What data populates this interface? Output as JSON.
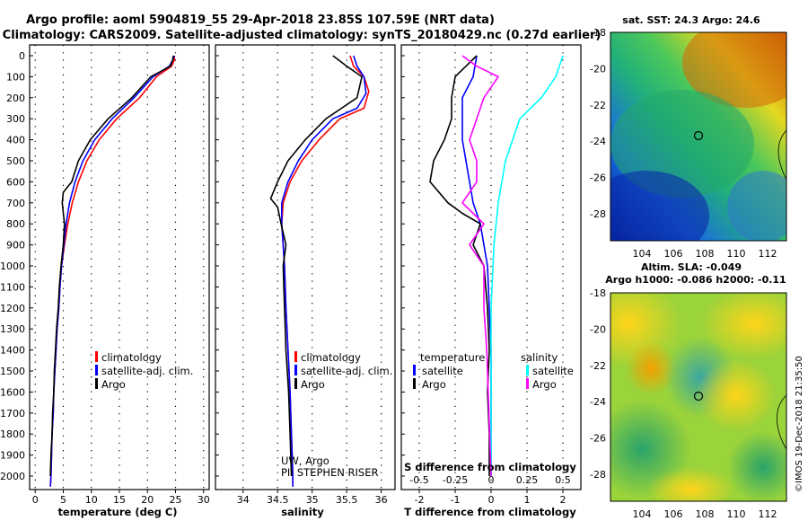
{
  "title": {
    "line1": "Argo profile: aoml 5904819_55 29-Apr-2018 23.85S 107.59E (NRT data)",
    "line2": "Climatology: CARS2009. Satellite-adjusted climatology: synTS_20180429.nc (0.27d earlier)"
  },
  "colors": {
    "climatology": "#ff0000",
    "satellite": "#0000ff",
    "argo": "#000000",
    "salinity_sat": "#00ffff",
    "salinity_argo": "#ff00ff"
  },
  "depth_ticks": [
    "0",
    "100",
    "200",
    "300",
    "400",
    "500",
    "600",
    "700",
    "800",
    "900",
    "1000",
    "1100",
    "1200",
    "1300",
    "1400",
    "1500",
    "1600",
    "1700",
    "1800",
    "1900",
    "2000"
  ],
  "legend": {
    "climatology": "climatology",
    "satellite": "satellite-adj. clim.",
    "argo": "Argo"
  },
  "diff_legend": {
    "temperature": "temperature",
    "salinity": "salinity",
    "satellite": "satellite",
    "argo": "Argo",
    "s_axis_label": "S difference from climatology"
  },
  "salinity_note": {
    "line1": "UW, Argo",
    "line2": "PI: STEPHEN RISER"
  },
  "map_sst": {
    "header": "sat. SST: 24.3 Argo: 24.6",
    "lat_ticks": [
      "-18",
      "-20",
      "-22",
      "-24",
      "-26",
      "-28"
    ],
    "lon_ticks": [
      "104",
      "106",
      "108",
      "110",
      "112"
    ]
  },
  "map_sla": {
    "header1": "Altim. SLA: -0.049",
    "header2": "Argo h1000: -0.086 h2000: -0.11",
    "lat_ticks": [
      "-18",
      "-20",
      "-22",
      "-24",
      "-26",
      "-28"
    ],
    "lon_ticks": [
      "104",
      "106",
      "108",
      "110",
      "112"
    ]
  },
  "stamp": "©IMOS 19-Dec-2018 21:35:50",
  "chart_data": [
    {
      "type": "line",
      "xlabel": "temperature (deg C)",
      "ylabel": "",
      "xlim": [
        -1,
        31
      ],
      "ylim": [
        2050,
        0
      ],
      "xticks": [
        "0",
        "5",
        "10",
        "15",
        "20",
        "25",
        "30"
      ],
      "series": [
        {
          "name": "climatology",
          "points": [
            [
              24.8,
              0
            ],
            [
              24.8,
              20
            ],
            [
              24.3,
              50
            ],
            [
              21.6,
              100
            ],
            [
              18.6,
              200
            ],
            [
              14.5,
              300
            ],
            [
              11.4,
              400
            ],
            [
              9.2,
              500
            ],
            [
              7.7,
              600
            ],
            [
              6.6,
              700
            ],
            [
              5.8,
              800
            ],
            [
              5.2,
              900
            ],
            [
              4.7,
              1000
            ],
            [
              4.4,
              1100
            ],
            [
              4.2,
              1200
            ],
            [
              3.9,
              1300
            ],
            [
              3.7,
              1400
            ],
            [
              3.5,
              1500
            ],
            [
              3.3,
              1600
            ],
            [
              3.2,
              1700
            ],
            [
              3.0,
              1800
            ],
            [
              2.9,
              1900
            ],
            [
              2.8,
              2000
            ],
            [
              2.7,
              2050
            ]
          ]
        },
        {
          "name": "satellite-adj. clim.",
          "points": [
            [
              24.8,
              0
            ],
            [
              24.5,
              20
            ],
            [
              23.9,
              50
            ],
            [
              21.0,
              100
            ],
            [
              17.6,
              200
            ],
            [
              13.7,
              300
            ],
            [
              10.6,
              400
            ],
            [
              8.5,
              500
            ],
            [
              7.1,
              600
            ],
            [
              6.1,
              700
            ],
            [
              5.5,
              800
            ],
            [
              5.1,
              900
            ],
            [
              4.7,
              1000
            ],
            [
              4.4,
              1100
            ],
            [
              4.2,
              1200
            ],
            [
              3.9,
              1300
            ],
            [
              3.7,
              1400
            ],
            [
              3.5,
              1500
            ],
            [
              3.3,
              1600
            ],
            [
              3.2,
              1700
            ],
            [
              3.0,
              1800
            ],
            [
              2.9,
              1900
            ],
            [
              2.8,
              2000
            ],
            [
              2.7,
              2050
            ]
          ]
        },
        {
          "name": "Argo",
          "points": [
            [
              24.6,
              0
            ],
            [
              24.5,
              20
            ],
            [
              24.1,
              50
            ],
            [
              20.6,
              100
            ],
            [
              17.2,
              200
            ],
            [
              13.0,
              300
            ],
            [
              9.8,
              400
            ],
            [
              7.7,
              500
            ],
            [
              6.5,
              600
            ],
            [
              5.0,
              650
            ],
            [
              4.8,
              700
            ],
            [
              5.2,
              800
            ],
            [
              5.0,
              900
            ],
            [
              4.6,
              1000
            ],
            [
              4.3,
              1100
            ],
            [
              4.1,
              1200
            ],
            [
              3.8,
              1300
            ],
            [
              3.6,
              1400
            ],
            [
              3.4,
              1500
            ],
            [
              3.3,
              1600
            ],
            [
              3.1,
              1700
            ],
            [
              3.0,
              1800
            ],
            [
              2.8,
              1900
            ],
            [
              2.7,
              2000
            ]
          ]
        }
      ]
    },
    {
      "type": "line",
      "xlabel": "salinity",
      "ylabel": "",
      "xlim": [
        33.6,
        36.2
      ],
      "ylim": [
        2050,
        0
      ],
      "xticks": [
        "34",
        "34.5",
        "35",
        "35.5",
        "36"
      ],
      "series": [
        {
          "name": "climatology",
          "points": [
            [
              35.55,
              0
            ],
            [
              35.6,
              50
            ],
            [
              35.75,
              100
            ],
            [
              35.82,
              170
            ],
            [
              35.75,
              250
            ],
            [
              35.4,
              300
            ],
            [
              35.1,
              400
            ],
            [
              34.85,
              500
            ],
            [
              34.68,
              600
            ],
            [
              34.58,
              700
            ],
            [
              34.56,
              800
            ],
            [
              34.58,
              900
            ],
            [
              34.6,
              1000
            ],
            [
              34.62,
              1200
            ],
            [
              34.65,
              1400
            ],
            [
              34.68,
              1600
            ],
            [
              34.7,
              1800
            ],
            [
              34.72,
              2000
            ],
            [
              34.72,
              2050
            ]
          ]
        },
        {
          "name": "satellite-adj. clim.",
          "points": [
            [
              35.6,
              0
            ],
            [
              35.65,
              50
            ],
            [
              35.75,
              100
            ],
            [
              35.78,
              180
            ],
            [
              35.65,
              250
            ],
            [
              35.3,
              300
            ],
            [
              35.0,
              400
            ],
            [
              34.8,
              500
            ],
            [
              34.65,
              600
            ],
            [
              34.56,
              700
            ],
            [
              34.56,
              800
            ],
            [
              34.58,
              900
            ],
            [
              34.6,
              1000
            ],
            [
              34.62,
              1200
            ],
            [
              34.65,
              1400
            ],
            [
              34.68,
              1600
            ],
            [
              34.7,
              1800
            ],
            [
              34.72,
              2000
            ],
            [
              34.72,
              2050
            ]
          ]
        },
        {
          "name": "Argo",
          "points": [
            [
              35.3,
              0
            ],
            [
              35.5,
              50
            ],
            [
              35.72,
              100
            ],
            [
              35.65,
              200
            ],
            [
              35.2,
              300
            ],
            [
              34.9,
              400
            ],
            [
              34.65,
              500
            ],
            [
              34.5,
              600
            ],
            [
              34.4,
              680
            ],
            [
              34.5,
              720
            ],
            [
              34.55,
              800
            ],
            [
              34.62,
              900
            ],
            [
              34.58,
              1000
            ],
            [
              34.6,
              1200
            ],
            [
              34.62,
              1400
            ],
            [
              34.66,
              1600
            ],
            [
              34.68,
              1800
            ],
            [
              34.7,
              2000
            ]
          ]
        }
      ]
    },
    {
      "type": "line",
      "xlabel": "T difference from climatology",
      "ylabel": "",
      "xlim": [
        -2.5,
        2.5
      ],
      "ylim": [
        2050,
        0
      ],
      "xticks": [
        "-2",
        "-1",
        "0",
        "1",
        "2"
      ],
      "s_xticks": [
        "-0.5",
        "-0.25",
        "0",
        "0.25",
        "0.5"
      ],
      "series": [
        {
          "name": "temperature satellite",
          "points": [
            [
              -0.4,
              0
            ],
            [
              -0.5,
              100
            ],
            [
              -0.8,
              200
            ],
            [
              -0.8,
              300
            ],
            [
              -0.8,
              400
            ],
            [
              -0.7,
              500
            ],
            [
              -0.6,
              600
            ],
            [
              -0.5,
              700
            ],
            [
              -0.3,
              800
            ],
            [
              -0.2,
              900
            ],
            [
              -0.1,
              1000
            ],
            [
              -0.05,
              1200
            ],
            [
              0,
              1400
            ],
            [
              0,
              1600
            ],
            [
              0,
              1800
            ],
            [
              0,
              2000
            ]
          ]
        },
        {
          "name": "temperature Argo",
          "points": [
            [
              -0.4,
              0
            ],
            [
              -0.7,
              50
            ],
            [
              -1.0,
              100
            ],
            [
              -1.1,
              200
            ],
            [
              -1.1,
              300
            ],
            [
              -1.3,
              400
            ],
            [
              -1.6,
              500
            ],
            [
              -1.7,
              600
            ],
            [
              -1.2,
              700
            ],
            [
              -0.8,
              750
            ],
            [
              -0.3,
              800
            ],
            [
              -0.5,
              900
            ],
            [
              -0.2,
              1000
            ],
            [
              -0.1,
              1200
            ],
            [
              -0.05,
              1400
            ],
            [
              -0.1,
              1600
            ],
            [
              -0.05,
              1800
            ],
            [
              -0.05,
              2000
            ]
          ]
        },
        {
          "name": "salinity satellite",
          "points": [
            [
              0.5,
              0
            ],
            [
              0.45,
              100
            ],
            [
              0.35,
              200
            ],
            [
              0.2,
              300
            ],
            [
              0.15,
              400
            ],
            [
              0.1,
              500
            ],
            [
              0.05,
              700
            ],
            [
              0.02,
              900
            ],
            [
              0,
              1200
            ],
            [
              0,
              2000
            ]
          ]
        },
        {
          "name": "salinity Argo",
          "points": [
            [
              -0.2,
              0
            ],
            [
              -0.1,
              50
            ],
            [
              0.05,
              100
            ],
            [
              -0.05,
              200
            ],
            [
              -0.1,
              300
            ],
            [
              -0.15,
              400
            ],
            [
              -0.1,
              500
            ],
            [
              -0.1,
              600
            ],
            [
              -0.2,
              700
            ],
            [
              -0.05,
              800
            ],
            [
              -0.15,
              900
            ],
            [
              -0.05,
              1000
            ],
            [
              -0.05,
              1200
            ],
            [
              -0.03,
              1400
            ],
            [
              -0.02,
              1600
            ],
            [
              -0.01,
              1800
            ],
            [
              0,
              2000
            ]
          ]
        }
      ]
    }
  ]
}
